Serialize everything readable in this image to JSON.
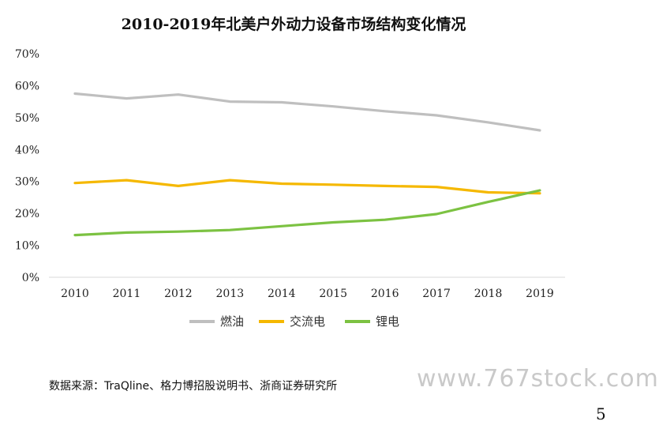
{
  "chart_data": {
    "type": "line",
    "title": "2010-2019年北美户外动力设备市场结构变化情况",
    "categories": [
      "2010",
      "2011",
      "2012",
      "2013",
      "2014",
      "2015",
      "2016",
      "2017",
      "2018",
      "2019"
    ],
    "y_tick_labels": [
      "0%",
      "10%",
      "20%",
      "30%",
      "40%",
      "50%",
      "60%",
      "70%"
    ],
    "ylim": [
      0,
      70
    ],
    "grid": false,
    "legend_position": "bottom",
    "series": [
      {
        "name": "燃油",
        "color": "#bfbfbf",
        "values": [
          57.5,
          56,
          57.2,
          55,
          54.8,
          53.5,
          52,
          50.7,
          48.5,
          46
        ]
      },
      {
        "name": "交流电",
        "color": "#f5b800",
        "values": [
          29.5,
          30.4,
          28.6,
          30.4,
          29.3,
          29,
          28.6,
          28.3,
          26.6,
          26.3
        ]
      },
      {
        "name": "锂电",
        "color": "#7cc242",
        "values": [
          13.2,
          14,
          14.3,
          14.8,
          16,
          17.2,
          18,
          19.8,
          23.6,
          27.2
        ]
      }
    ]
  },
  "footer": {
    "source": "数据来源：TraQline、格力博招股说明书、浙商证券研究所",
    "watermark": "www.767stock.com",
    "page_number": "5"
  }
}
